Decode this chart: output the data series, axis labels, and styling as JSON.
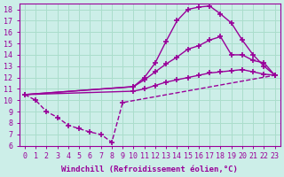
{
  "background_color": "#cceee8",
  "grid_color": "#aaddcc",
  "line_color": "#990099",
  "marker": "+",
  "markersize": 5,
  "linewidth": 1.0,
  "markeredgewidth": 1.2,
  "xlim": [
    -0.5,
    23.5
  ],
  "ylim": [
    6,
    18.5
  ],
  "xticks": [
    0,
    1,
    2,
    3,
    4,
    5,
    6,
    7,
    8,
    9,
    10,
    11,
    12,
    13,
    14,
    15,
    16,
    17,
    18,
    19,
    20,
    21,
    22,
    23
  ],
  "yticks": [
    6,
    7,
    8,
    9,
    10,
    11,
    12,
    13,
    14,
    15,
    16,
    17,
    18
  ],
  "xlabel": "Windchill (Refroidissement éolien,°C)",
  "xlabel_fontsize": 6.5,
  "tick_fontsize": 6,
  "line1_x": [
    0,
    10,
    11,
    12,
    13,
    14,
    15,
    16,
    17,
    18,
    19,
    20,
    21,
    22,
    23
  ],
  "line1_y": [
    10.5,
    11.2,
    12.0,
    13.3,
    15.2,
    17.0,
    18.0,
    18.2,
    18.3,
    17.6,
    16.8,
    15.3,
    14.0,
    13.0,
    12.2
  ],
  "line2_x": [
    0,
    10,
    11,
    12,
    13,
    14,
    15,
    16,
    17,
    18,
    19,
    20,
    21,
    22,
    23
  ],
  "line2_y": [
    10.5,
    11.2,
    11.8,
    12.5,
    13.2,
    13.8,
    14.5,
    14.8,
    15.3,
    15.6,
    14.0,
    14.0,
    13.5,
    13.3,
    12.2
  ],
  "line3_x": [
    0,
    10,
    11,
    12,
    13,
    14,
    15,
    16,
    17,
    18,
    19,
    20,
    21,
    22,
    23
  ],
  "line3_y": [
    10.5,
    10.8,
    11.0,
    11.3,
    11.6,
    11.8,
    12.0,
    12.2,
    12.4,
    12.5,
    12.6,
    12.7,
    12.5,
    12.3,
    12.2
  ],
  "line4_x": [
    0,
    1,
    2,
    3,
    4,
    5,
    6,
    7,
    8,
    9,
    23
  ],
  "line4_y": [
    10.5,
    10.0,
    9.0,
    8.5,
    7.8,
    7.5,
    7.2,
    7.0,
    6.3,
    9.8,
    12.2
  ]
}
